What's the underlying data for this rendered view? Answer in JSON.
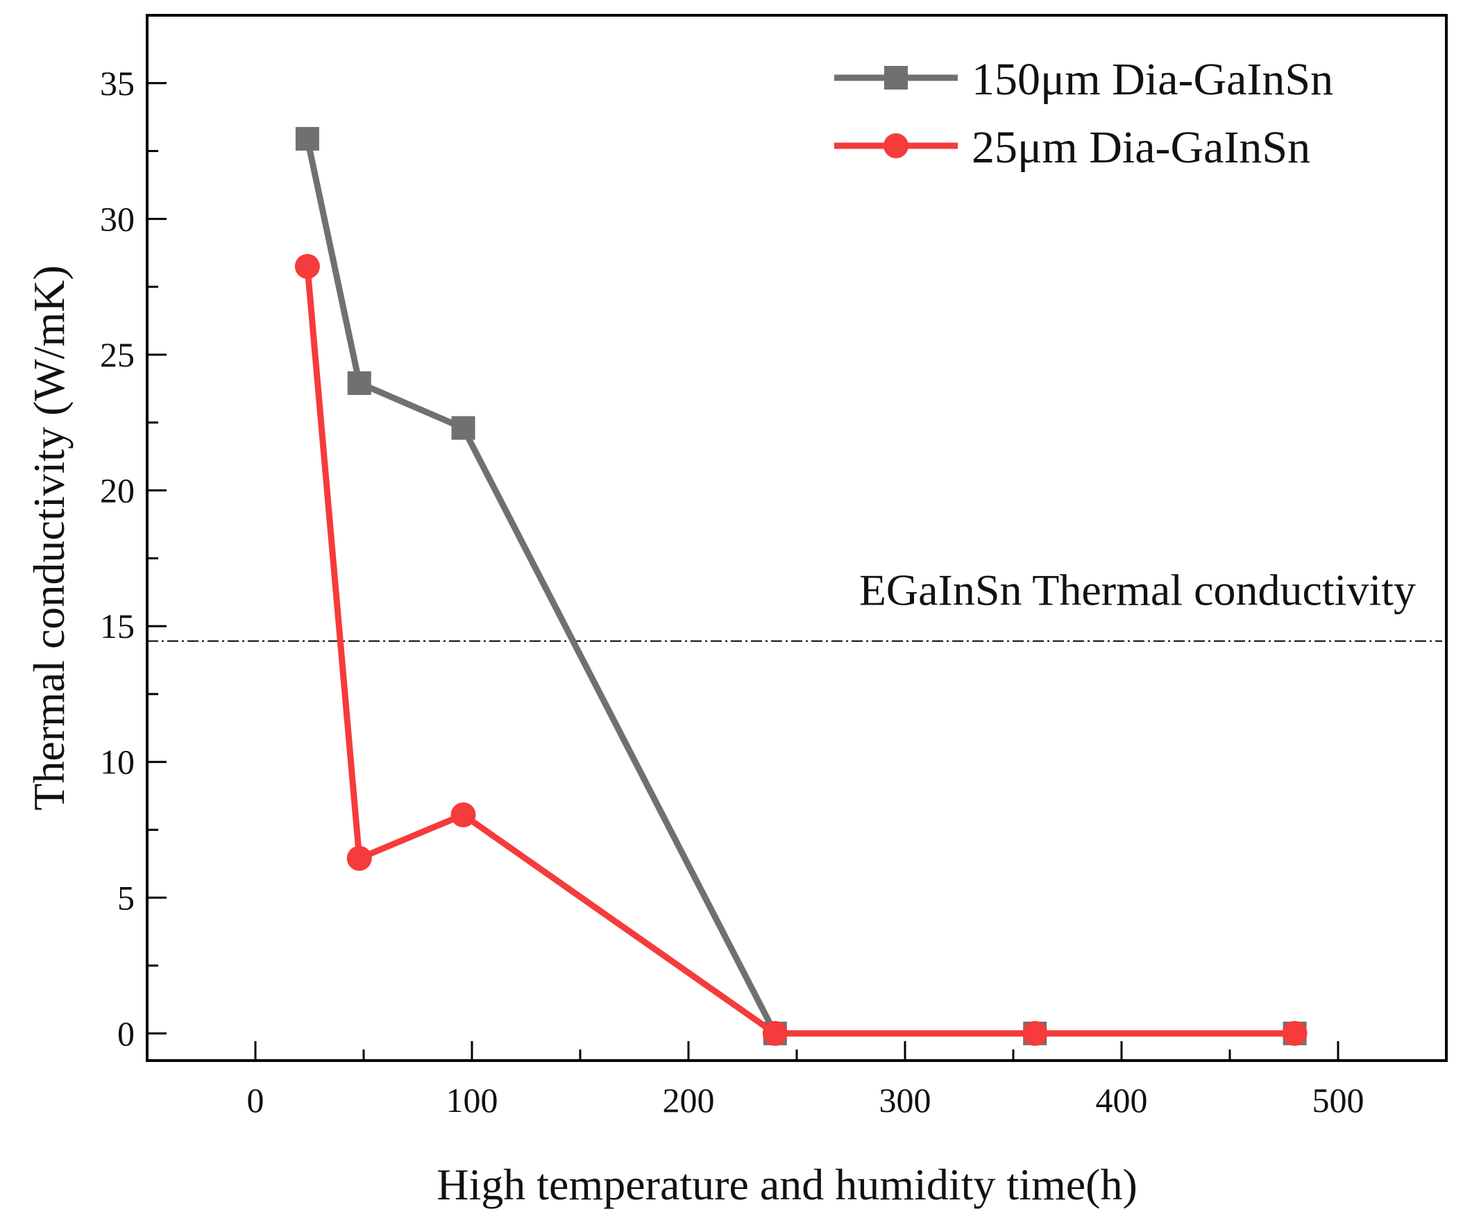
{
  "chart_data": {
    "type": "line",
    "xlabel": "High temperature and  humidity time(h)",
    "ylabel": "Thermal conductivity (W/mK)",
    "xlim": [
      -50,
      550
    ],
    "ylim": [
      -1,
      37.5
    ],
    "xticks": [
      0,
      100,
      200,
      300,
      400,
      500
    ],
    "yticks": [
      0,
      5,
      10,
      15,
      20,
      25,
      30,
      35
    ],
    "legend_position": "top-right",
    "grid": false,
    "series": [
      {
        "name": "150μm  Dia-GaInSn",
        "color": "#707070",
        "marker": "square",
        "x": [
          24,
          48,
          96,
          240,
          360,
          480
        ],
        "y": [
          32.95,
          23.95,
          22.3,
          0,
          0,
          0
        ]
      },
      {
        "name": "25μm  Dia-GaInSn",
        "color": "#f53b3b",
        "marker": "circle",
        "x": [
          24,
          48,
          96,
          240,
          360,
          480
        ],
        "y": [
          28.25,
          6.45,
          8.05,
          0,
          0,
          0
        ]
      }
    ],
    "reference_line": {
      "label": "EGaInSn Thermal conductivity",
      "y": 14.45,
      "style": "dash-dot"
    }
  }
}
